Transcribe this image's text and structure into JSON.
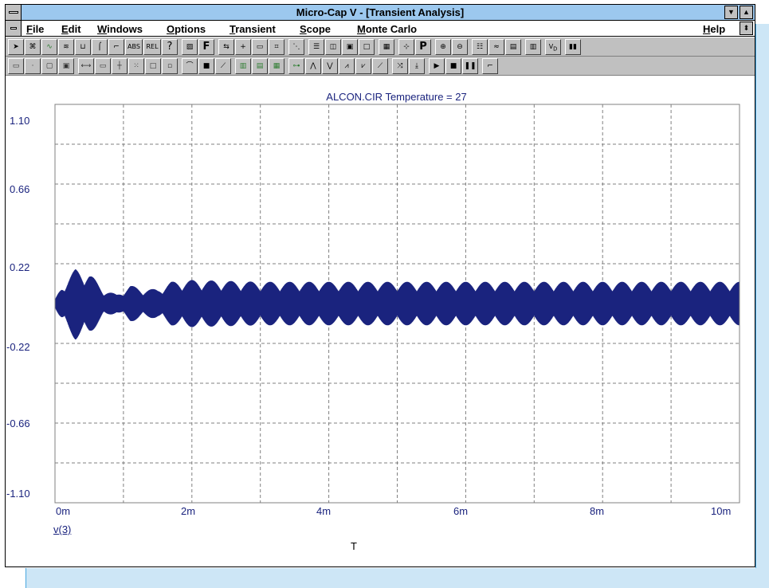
{
  "window": {
    "title": "Micro-Cap V - [Transient Analysis]"
  },
  "menu": {
    "items": [
      "File",
      "Edit",
      "Windows",
      "Options",
      "Transient",
      "Scope",
      "Monte Carlo"
    ],
    "help": "Help"
  },
  "toolbar1": {
    "buttons": [
      "select",
      "component",
      "plot-mode",
      "text-mode",
      "wire",
      "info",
      "delete",
      "abs",
      "rel",
      "help",
      "pattern",
      "font",
      "step",
      "pin",
      "nodes",
      "grid",
      "cursor",
      "lines",
      "windows",
      "tile",
      "blank",
      "calc",
      "move",
      "plot-props",
      "zoom-in",
      "zoom-out",
      "tokens",
      "waveform",
      "data",
      "table",
      "vi",
      "bars"
    ],
    "abs_label": "ABS",
    "rel_label": "REL",
    "help_label": "?",
    "font_label": "F",
    "p_label": "P"
  },
  "plot": {
    "title": "ALCON.CIR Temperature = 27",
    "trace": "v(3)",
    "x_axis_name": "T",
    "grid_color": "#808080",
    "trace_color": "#1a237e"
  },
  "chart_data": {
    "type": "line",
    "title": "ALCON.CIR Temperature = 27",
    "xlabel": "T",
    "ylabel": "",
    "x_ticks": [
      "0m",
      "2m",
      "4m",
      "6m",
      "8m",
      "10m"
    ],
    "y_ticks": [
      "1.10",
      "0.66",
      "0.22",
      "-0.22",
      "-0.66",
      "-1.10"
    ],
    "xlim": [
      0,
      0.01
    ],
    "ylim": [
      -1.1,
      1.1
    ],
    "grid": true,
    "series": [
      {
        "name": "v(3)",
        "envelope": {
          "x_ms": [
            0,
            0.1,
            0.3,
            0.5,
            0.7,
            0.9,
            1.1,
            1.3,
            1.5,
            1.7,
            2.0,
            3.0,
            4.0,
            5.0,
            6.0,
            7.0,
            8.0,
            9.0,
            10.0
          ],
          "upper": [
            0.02,
            0.1,
            0.19,
            0.17,
            0.08,
            0.05,
            0.1,
            0.08,
            0.08,
            0.12,
            0.13,
            0.12,
            0.12,
            0.12,
            0.12,
            0.12,
            0.12,
            0.12,
            0.12
          ],
          "lower": [
            -0.02,
            -0.1,
            -0.2,
            -0.17,
            -0.08,
            -0.05,
            -0.1,
            -0.08,
            -0.08,
            -0.12,
            -0.13,
            -0.12,
            -0.12,
            -0.12,
            -0.12,
            -0.12,
            -0.12,
            -0.12,
            -0.12
          ]
        },
        "modulation_bursts_per_ms": 3.5
      }
    ]
  }
}
